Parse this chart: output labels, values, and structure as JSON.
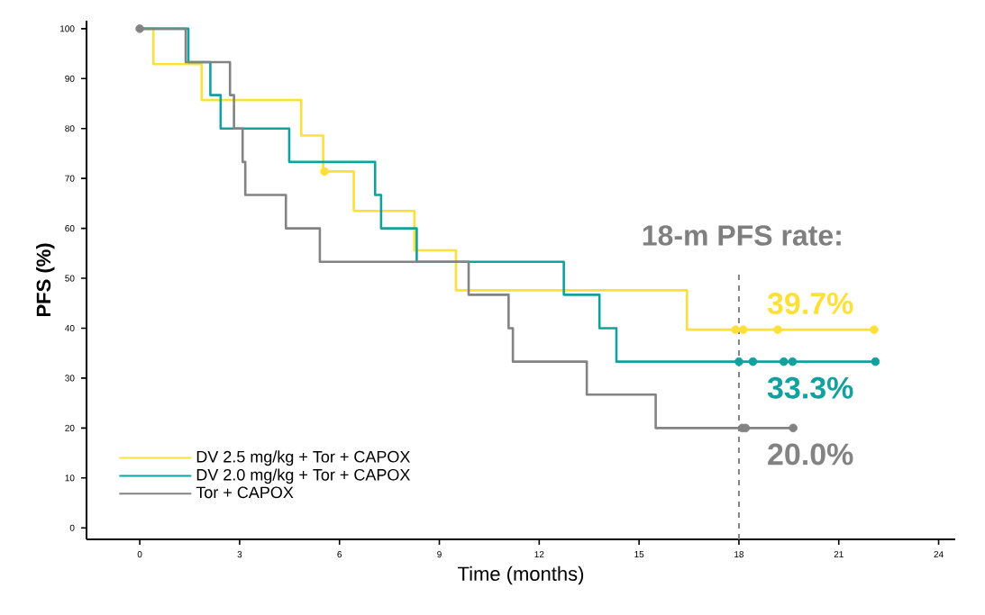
{
  "chart_data": {
    "type": "step",
    "xlabel": "Time (months)",
    "ylabel": "PFS (%)",
    "xlim": [
      -1.6,
      24.5
    ],
    "ylim": [
      -2.3,
      101.6
    ],
    "xticks": [
      0,
      3,
      6,
      9,
      12,
      15,
      18,
      21,
      24
    ],
    "yticks": [
      0,
      10,
      20,
      30,
      40,
      50,
      60,
      70,
      80,
      90,
      100
    ],
    "legend": "bottom left",
    "grid": false,
    "line_style": "solid",
    "series": [
      {
        "name": "DV 2.5 mg/kg + Tor + CAPOX",
        "color": "#FFE03A",
        "x": [
          0,
          0.41,
          1.86,
          4.85,
          5.51,
          6.43,
          8.25,
          9.5,
          16.44,
          22.06
        ],
        "values": [
          100,
          92.9,
          85.7,
          78.6,
          71.4,
          63.5,
          55.6,
          47.6,
          39.7,
          39.7
        ]
      },
      {
        "name": "DV 2.0 mg/kg + Tor + CAPOX",
        "color": "#12A19E",
        "x": [
          0,
          1.46,
          2.12,
          2.43,
          4.49,
          7.07,
          7.25,
          8.32,
          12.74,
          13.81,
          14.32,
          22.1
        ],
        "values": [
          100,
          93.3,
          86.7,
          80,
          73.3,
          66.7,
          60,
          53.3,
          46.7,
          40,
          33.3,
          33.3
        ]
      },
      {
        "name": "Tor + CAPOX",
        "color": "#838383",
        "x": [
          0,
          1.38,
          2.71,
          2.83,
          3.09,
          3.17,
          4.39,
          5.41,
          9.88,
          11.08,
          11.21,
          13.43,
          15.5,
          19.63
        ],
        "values": [
          100,
          93.3,
          86.7,
          80,
          73.3,
          66.7,
          60,
          53.3,
          46.7,
          40,
          33.3,
          26.7,
          20,
          20
        ]
      },
      {
        "type": "scatter",
        "color": "#FFE03A",
        "x": [
          5.55,
          17.9,
          18.13,
          19.17,
          22.06
        ],
        "values": [
          71.4,
          39.7,
          39.7,
          39.7,
          39.7
        ]
      },
      {
        "type": "scatter",
        "color": "#12A19E",
        "x": [
          18.0,
          18.42,
          19.35,
          19.61,
          22.1
        ],
        "values": [
          33.3,
          33.3,
          33.3,
          33.3,
          33.3
        ]
      },
      {
        "type": "scatter",
        "color": "#838383",
        "x": [
          0,
          18.1,
          18.2,
          19.63
        ],
        "values": [
          100,
          20,
          20,
          20
        ]
      }
    ],
    "ref_lines": [
      {
        "axis": "x",
        "value": 18,
        "color": "#838383",
        "line_style": "dashed"
      }
    ],
    "annotations": [
      "18-m PFS rate:",
      "39.7%",
      "33.3%",
      "20.0%"
    ]
  }
}
